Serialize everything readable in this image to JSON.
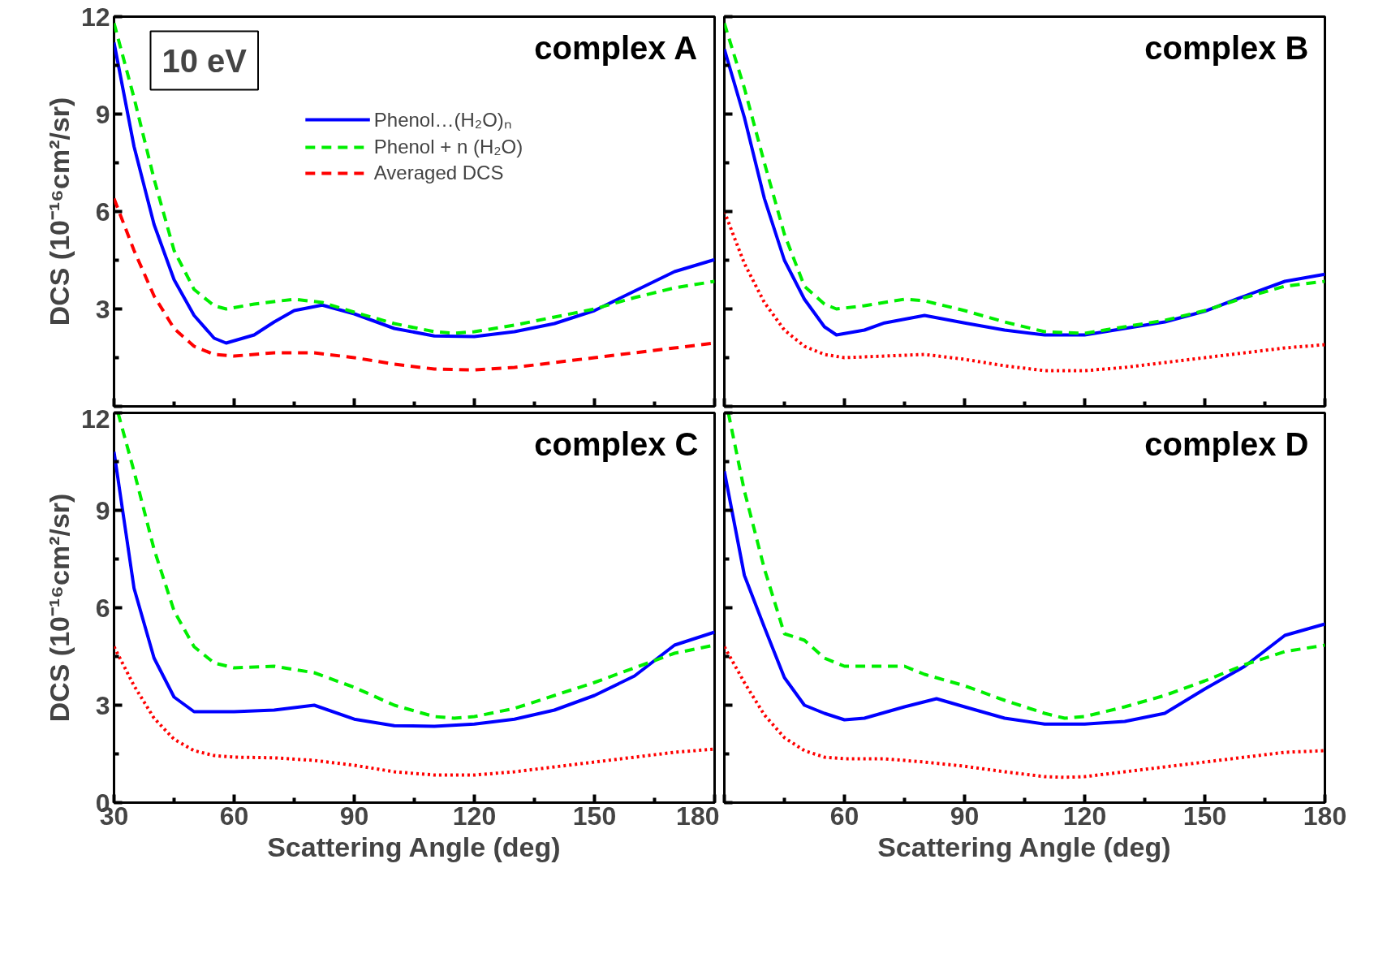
{
  "chart_data": [
    {
      "type": "line",
      "title": "complex A",
      "ylabel": "DCS (10⁻¹⁶cm²/sr)",
      "annotations": [
        "10 eV"
      ],
      "legend": "top",
      "tick_labels": "y",
      "xlim": [
        30,
        180
      ],
      "ylim": [
        0,
        12
      ],
      "xticks": [
        30,
        60,
        90,
        120,
        150,
        180
      ],
      "yticks": [
        {
          "value": 0,
          "label": null
        },
        3,
        6,
        9,
        12
      ],
      "series": [
        {
          "name": "Phenol…(H₂O)ₙ",
          "color": "#0000ff",
          "line_style": "solid",
          "x": [
            30,
            35,
            40,
            45,
            50,
            55,
            58,
            65,
            70,
            75,
            82,
            90,
            100,
            110,
            120,
            130,
            140,
            150,
            160,
            170,
            180
          ],
          "values": [
            11.2,
            8.0,
            5.6,
            3.9,
            2.8,
            2.1,
            1.95,
            2.2,
            2.6,
            2.95,
            3.12,
            2.85,
            2.4,
            2.17,
            2.15,
            2.3,
            2.55,
            2.95,
            3.55,
            4.15,
            4.52
          ]
        },
        {
          "name": "Phenol + n (H₂O)",
          "color": "#00ee00",
          "line_style": "dashed",
          "x": [
            30,
            35,
            40,
            45,
            50,
            55,
            58,
            65,
            75,
            82,
            90,
            100,
            110,
            115,
            120,
            130,
            140,
            150,
            160,
            170,
            180
          ],
          "values": [
            11.8,
            9.5,
            7.0,
            4.8,
            3.6,
            3.1,
            3.0,
            3.15,
            3.3,
            3.2,
            2.9,
            2.55,
            2.3,
            2.25,
            2.3,
            2.5,
            2.75,
            3.0,
            3.35,
            3.65,
            3.85
          ]
        },
        {
          "name": "Averaged DCS",
          "color": "#ff0000",
          "line_style": "dashed",
          "x": [
            30,
            35,
            40,
            45,
            50,
            55,
            60,
            70,
            80,
            90,
            100,
            110,
            120,
            130,
            140,
            150,
            160,
            170,
            180
          ],
          "values": [
            6.4,
            4.8,
            3.4,
            2.4,
            1.85,
            1.6,
            1.55,
            1.65,
            1.65,
            1.5,
            1.3,
            1.15,
            1.12,
            1.2,
            1.35,
            1.5,
            1.65,
            1.8,
            1.95
          ]
        }
      ]
    },
    {
      "type": "line",
      "title": "complex B",
      "tick_labels": false,
      "xlim": [
        30,
        180
      ],
      "ylim": [
        0,
        12
      ],
      "xticks": [
        30,
        60,
        90,
        120,
        150,
        180
      ],
      "yticks": [
        0,
        3,
        6,
        9,
        12
      ],
      "series": [
        {
          "color": "#0000ff",
          "line_style": "solid",
          "x": [
            30,
            35,
            40,
            45,
            50,
            55,
            58,
            65,
            70,
            80,
            90,
            100,
            110,
            120,
            130,
            140,
            150,
            160,
            170,
            180
          ],
          "values": [
            11.0,
            8.9,
            6.4,
            4.5,
            3.3,
            2.45,
            2.2,
            2.35,
            2.57,
            2.8,
            2.57,
            2.35,
            2.2,
            2.2,
            2.4,
            2.6,
            2.93,
            3.4,
            3.85,
            4.07
          ]
        },
        {
          "color": "#00ee00",
          "line_style": "dashed",
          "x": [
            30,
            35,
            40,
            45,
            50,
            55,
            58,
            65,
            75,
            80,
            90,
            100,
            110,
            120,
            130,
            140,
            150,
            160,
            170,
            180
          ],
          "values": [
            11.8,
            9.8,
            7.5,
            5.3,
            3.7,
            3.15,
            3.0,
            3.1,
            3.3,
            3.25,
            2.95,
            2.6,
            2.3,
            2.25,
            2.45,
            2.65,
            2.95,
            3.35,
            3.7,
            3.85
          ]
        },
        {
          "color": "#ff0000",
          "line_style": "dotted",
          "x": [
            30,
            35,
            40,
            45,
            50,
            55,
            60,
            70,
            80,
            90,
            100,
            110,
            120,
            130,
            140,
            150,
            160,
            170,
            180
          ],
          "values": [
            6.0,
            4.4,
            3.2,
            2.35,
            1.85,
            1.6,
            1.5,
            1.55,
            1.6,
            1.45,
            1.25,
            1.1,
            1.1,
            1.2,
            1.35,
            1.5,
            1.65,
            1.8,
            1.9
          ]
        }
      ]
    },
    {
      "type": "line",
      "title": "complex C",
      "xlabel": "Scattering Angle (deg)",
      "ylabel": "DCS (10⁻¹⁶cm²/sr)",
      "xlim": [
        30,
        180
      ],
      "ylim": [
        0,
        12
      ],
      "xticks": [
        30,
        60,
        90,
        120,
        150,
        180
      ],
      "yticks": [
        0,
        3,
        6,
        9,
        12
      ],
      "series": [
        {
          "color": "#0000ff",
          "line_style": "solid",
          "x": [
            30,
            35,
            40,
            45,
            50,
            60,
            70,
            80,
            90,
            100,
            110,
            120,
            130,
            140,
            150,
            160,
            170,
            180
          ],
          "values": [
            10.8,
            6.6,
            4.45,
            3.25,
            2.8,
            2.8,
            2.85,
            3.0,
            2.57,
            2.37,
            2.35,
            2.42,
            2.57,
            2.85,
            3.3,
            3.9,
            4.85,
            5.25
          ]
        },
        {
          "color": "#00ee00",
          "line_style": "dashed",
          "x": [
            31,
            35,
            40,
            45,
            50,
            55,
            60,
            70,
            80,
            90,
            100,
            110,
            115,
            120,
            130,
            140,
            150,
            160,
            170,
            180
          ],
          "values": [
            12.0,
            10.2,
            7.8,
            5.9,
            4.8,
            4.3,
            4.15,
            4.2,
            4.0,
            3.55,
            3.0,
            2.65,
            2.6,
            2.65,
            2.9,
            3.3,
            3.7,
            4.15,
            4.6,
            4.85
          ]
        },
        {
          "color": "#ff0000",
          "line_style": "dotted",
          "x": [
            30,
            35,
            40,
            45,
            50,
            55,
            60,
            70,
            80,
            90,
            100,
            110,
            120,
            130,
            140,
            150,
            160,
            170,
            180
          ],
          "values": [
            4.8,
            3.6,
            2.6,
            1.95,
            1.6,
            1.45,
            1.4,
            1.38,
            1.3,
            1.15,
            0.95,
            0.85,
            0.85,
            0.95,
            1.1,
            1.25,
            1.4,
            1.55,
            1.65
          ]
        }
      ]
    },
    {
      "type": "line",
      "title": "complex D",
      "xlabel": "Scattering Angle (deg)",
      "tick_labels": "x",
      "xlim": [
        30,
        180
      ],
      "ylim": [
        0,
        12
      ],
      "xticks": [
        {
          "value": 30,
          "label": null
        },
        60,
        90,
        120,
        150,
        180
      ],
      "yticks": [
        0,
        3,
        6,
        9,
        12
      ],
      "series": [
        {
          "color": "#0000ff",
          "line_style": "solid",
          "x": [
            30,
            35,
            40,
            45,
            50,
            55,
            60,
            65,
            75,
            83,
            90,
            100,
            110,
            120,
            130,
            140,
            150,
            160,
            170,
            180
          ],
          "values": [
            10.2,
            7.0,
            5.4,
            3.85,
            3.0,
            2.75,
            2.55,
            2.6,
            2.95,
            3.2,
            2.95,
            2.6,
            2.42,
            2.42,
            2.5,
            2.75,
            3.5,
            4.2,
            5.15,
            5.5
          ]
        },
        {
          "color": "#00ee00",
          "line_style": "dashed",
          "x": [
            31,
            35,
            40,
            45,
            50,
            55,
            60,
            70,
            75,
            80,
            90,
            100,
            110,
            115,
            120,
            130,
            140,
            150,
            160,
            170,
            180
          ],
          "values": [
            12.0,
            9.6,
            7.2,
            5.2,
            5.0,
            4.45,
            4.2,
            4.2,
            4.2,
            3.95,
            3.6,
            3.15,
            2.75,
            2.6,
            2.65,
            2.95,
            3.3,
            3.75,
            4.25,
            4.65,
            4.85
          ]
        },
        {
          "color": "#ff0000",
          "line_style": "dotted",
          "x": [
            30,
            35,
            40,
            45,
            50,
            55,
            60,
            70,
            80,
            90,
            100,
            110,
            115,
            120,
            130,
            140,
            150,
            160,
            170,
            180
          ],
          "values": [
            4.8,
            3.7,
            2.7,
            2.0,
            1.6,
            1.4,
            1.35,
            1.35,
            1.25,
            1.12,
            0.95,
            0.8,
            0.78,
            0.8,
            0.95,
            1.1,
            1.25,
            1.4,
            1.55,
            1.6
          ]
        }
      ]
    }
  ]
}
